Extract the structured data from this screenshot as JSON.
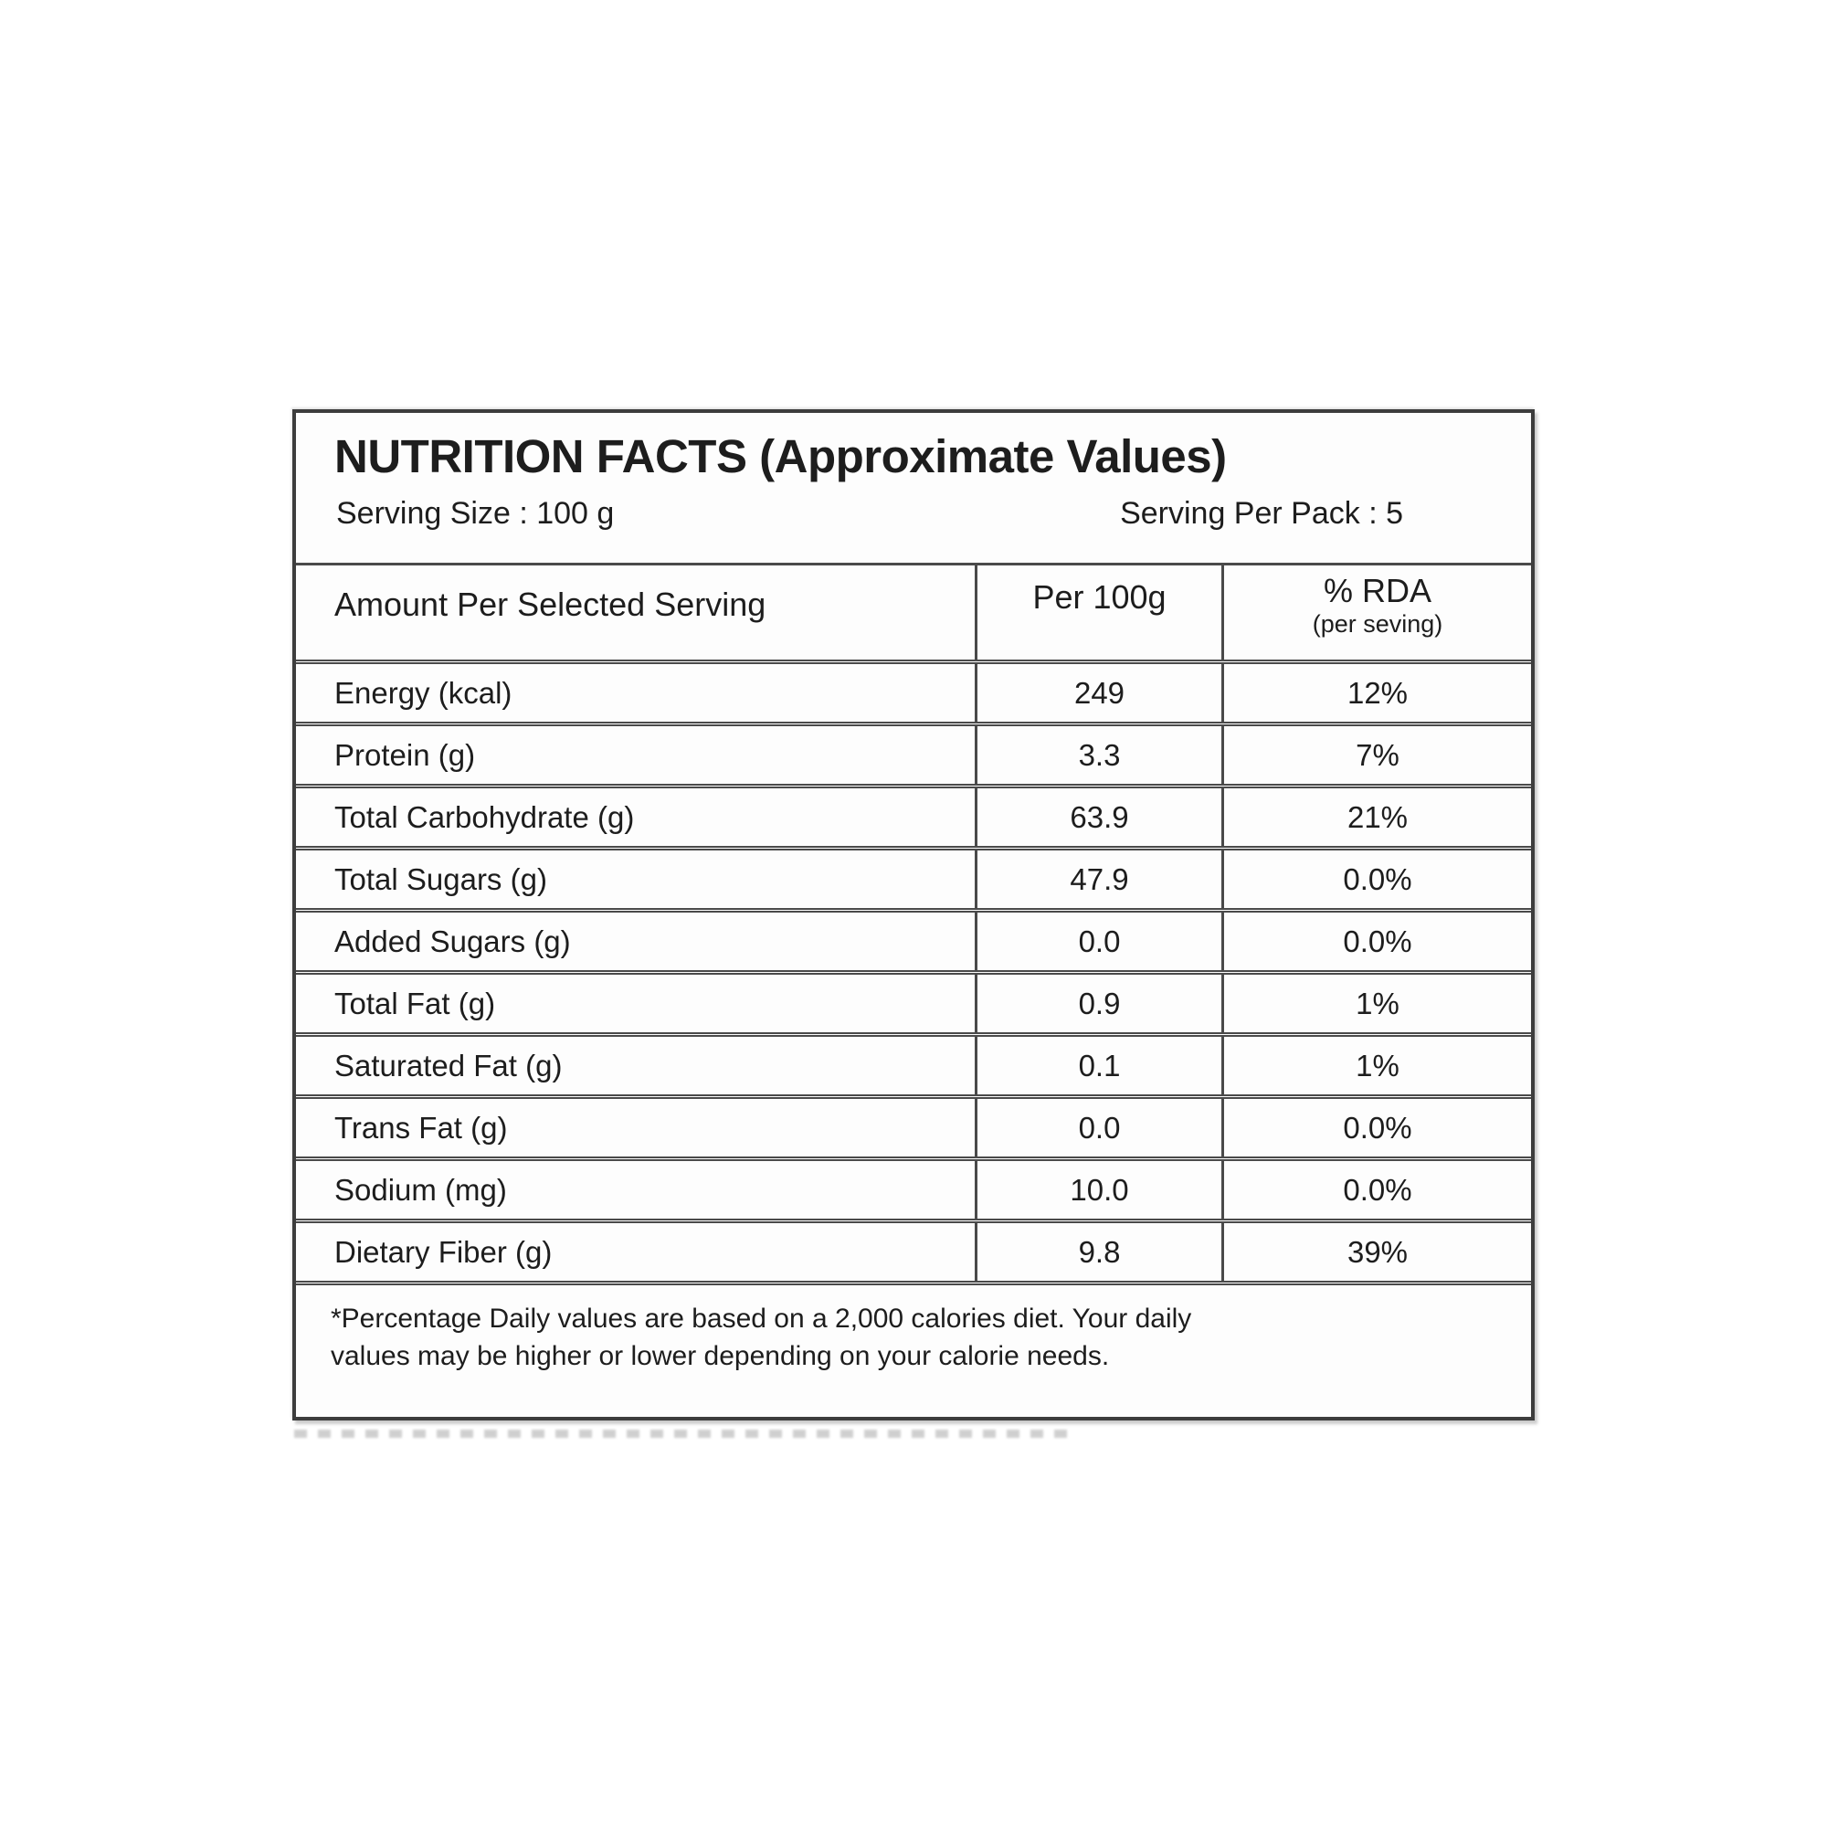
{
  "colors": {
    "ink": "#1d1d1d",
    "border": "#4a4a4a",
    "background": "#ffffff"
  },
  "label": {
    "title": "NUTRITION FACTS (Approximate Values)",
    "serving_size": "Serving Size : 100 g",
    "serving_per_pack": "Serving Per Pack : 5",
    "columns": {
      "amount": "Amount Per Selected Serving",
      "per100g": "Per 100g",
      "rda": "% RDA",
      "rda_sub": "(per seving)"
    },
    "rows": [
      {
        "name": "Energy (kcal)",
        "per100g": "249",
        "rda": "12%"
      },
      {
        "name": "Protein (g)",
        "per100g": "3.3",
        "rda": "7%"
      },
      {
        "name": "Total Carbohydrate (g)",
        "per100g": "63.9",
        "rda": "21%"
      },
      {
        "name": "Total Sugars (g)",
        "per100g": "47.9",
        "rda": "0.0%"
      },
      {
        "name": "Added Sugars (g)",
        "per100g": "0.0",
        "rda": "0.0%"
      },
      {
        "name": "Total Fat (g)",
        "per100g": "0.9",
        "rda": "1%"
      },
      {
        "name": "Saturated Fat (g)",
        "per100g": "0.1",
        "rda": "1%"
      },
      {
        "name": "Trans Fat (g)",
        "per100g": "0.0",
        "rda": "0.0%"
      },
      {
        "name": "Sodium (mg)",
        "per100g": "10.0",
        "rda": "0.0%"
      },
      {
        "name": "Dietary Fiber (g)",
        "per100g": "9.8",
        "rda": "39%"
      }
    ],
    "footnote": {
      "lines": [
        "*Percentage Daily values are based on a 2,000 calories diet. Your daily",
        "values may be higher or lower depending on your calorie needs."
      ]
    }
  }
}
